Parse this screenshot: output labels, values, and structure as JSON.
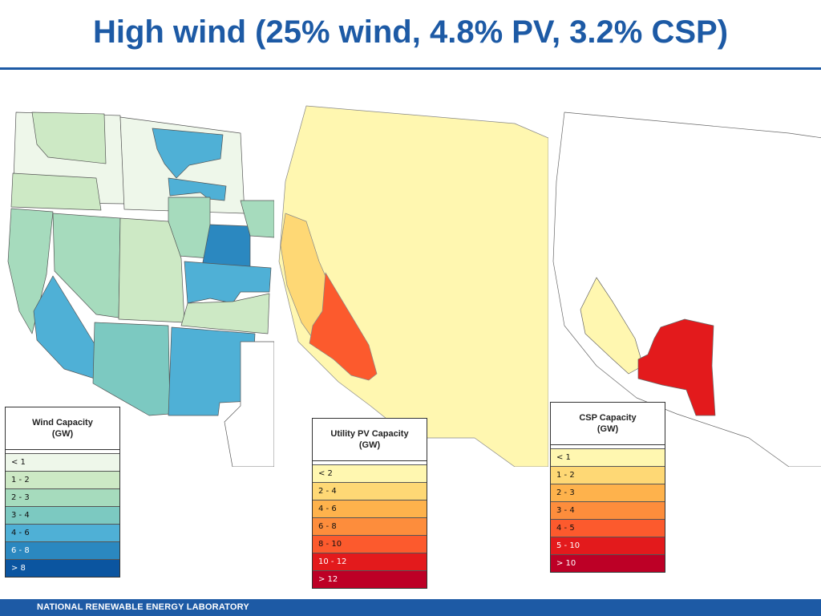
{
  "slide": {
    "title": "High wind (25% wind, 4.8% PV, 3.2% CSP)",
    "footer": "NATIONAL RENEWABLE ENERGY LABORATORY"
  },
  "maps": [
    {
      "id": "wind",
      "legend_title_line1": "Wind Capacity",
      "legend_title_line2": "(GW)",
      "bins": [
        {
          "label": "< 1",
          "color": "#eef7ea"
        },
        {
          "label": "1 - 2",
          "color": "#cde9c5"
        },
        {
          "label": "2 - 3",
          "color": "#a6dbbd"
        },
        {
          "label": "3 - 4",
          "color": "#7cc9c1"
        },
        {
          "label": "4 - 6",
          "color": "#4fb0d6"
        },
        {
          "label": "6 - 8",
          "color": "#2b88c0"
        },
        {
          "label": "> 8",
          "color": "#0b55a0"
        }
      ]
    },
    {
      "id": "pv",
      "legend_title_line1": "Utility PV Capacity",
      "legend_title_line2": "(GW)",
      "bins": [
        {
          "label": "< 2",
          "color": "#fff7b0"
        },
        {
          "label": "2 - 4",
          "color": "#fed875"
        },
        {
          "label": "4 - 6",
          "color": "#feb24c"
        },
        {
          "label": "6 - 8",
          "color": "#fd8d3c"
        },
        {
          "label": "8 - 10",
          "color": "#fc5a2d"
        },
        {
          "label": "10 - 12",
          "color": "#e31a1c"
        },
        {
          "label": "> 12",
          "color": "#bd0026"
        }
      ]
    },
    {
      "id": "csp",
      "legend_title_line1": "CSP Capacity",
      "legend_title_line2": "(GW)",
      "bins": [
        {
          "label": "< 1",
          "color": "#fff7b0"
        },
        {
          "label": "1 - 2",
          "color": "#fed875"
        },
        {
          "label": "2 - 3",
          "color": "#feb24c"
        },
        {
          "label": "3 - 4",
          "color": "#fd8d3c"
        },
        {
          "label": "4 - 5",
          "color": "#fc5a2d"
        },
        {
          "label": "5 - 10",
          "color": "#e31a1c"
        },
        {
          "label": "> 10",
          "color": "#bd0026"
        }
      ]
    }
  ]
}
